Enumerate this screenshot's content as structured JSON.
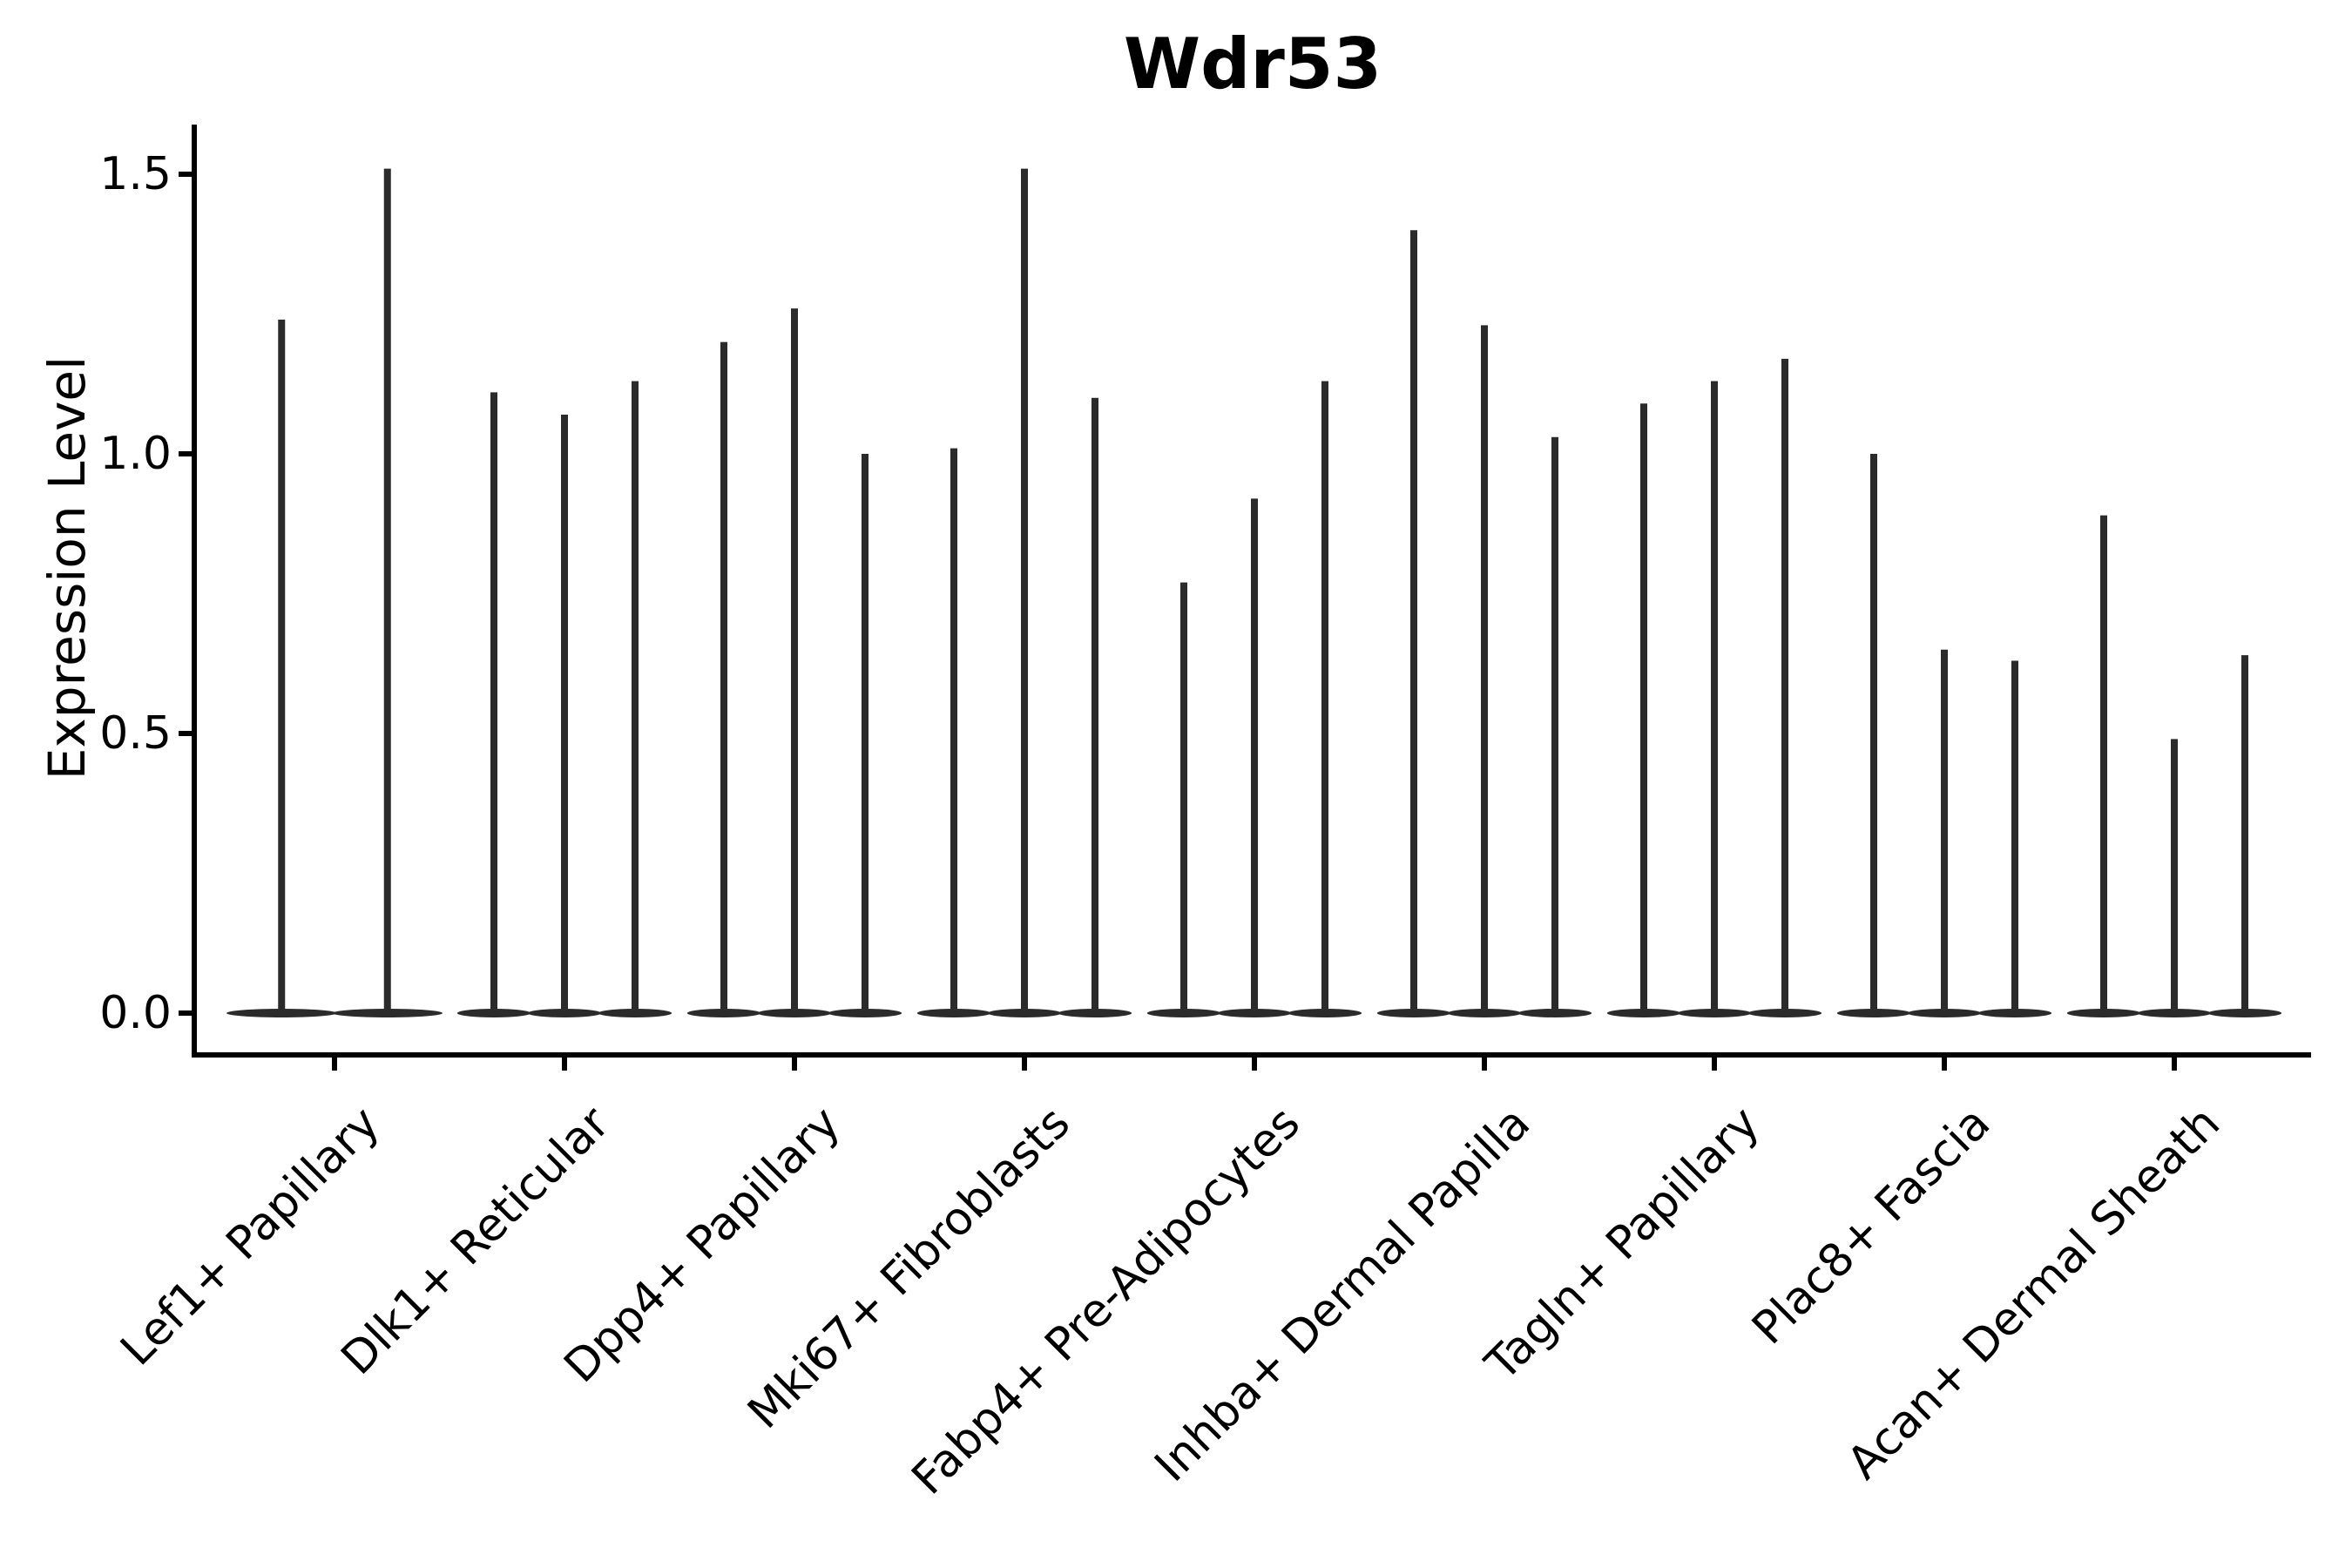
{
  "style": {
    "background": "#ffffff",
    "axis_color": "#000000",
    "violin_color": "#2b2b2b",
    "text_color": "#000000"
  },
  "chart_data": {
    "type": "violin",
    "title": "Wdr53",
    "xlabel": "",
    "ylabel": "Expression Level",
    "ylim": [
      -0.075,
      1.59
    ],
    "yticks": [
      0.0,
      0.5,
      1.0,
      1.5
    ],
    "ytick_labels": [
      "0.0",
      "0.5",
      "1.0",
      "1.5"
    ],
    "grid": false,
    "legend_position": "none",
    "x_tick_label_rotation_deg": 45,
    "categories": [
      "Lef1+ Papillary",
      "Dlk1+ Reticular",
      "Dpp4+ Papillary",
      "Mki67+ Fibroblasts",
      "Fabp4+ Pre-Adipocytes",
      "Inhba+ Dermal Papilla",
      "Tagln+ Papillary",
      "Plac8+ Fascia",
      "Acan+ Dermal Sheath"
    ],
    "description": "Spike-shaped violins: expression mass concentrated at 0 with a narrow spike reaching each violin's maximum expression value. Lef1+ Papillary has only two violins; all other categories have three.",
    "violins": [
      {
        "category": "Lef1+ Papillary",
        "maxima": [
          1.24,
          1.51
        ]
      },
      {
        "category": "Dlk1+ Reticular",
        "maxima": [
          1.11,
          1.07,
          1.13
        ]
      },
      {
        "category": "Dpp4+ Papillary",
        "maxima": [
          1.2,
          1.26,
          1.0
        ]
      },
      {
        "category": "Mki67+ Fibroblasts",
        "maxima": [
          1.01,
          1.51,
          1.1
        ]
      },
      {
        "category": "Fabp4+ Pre-Adipocytes",
        "maxima": [
          0.77,
          0.92,
          1.13
        ]
      },
      {
        "category": "Inhba+ Dermal Papilla",
        "maxima": [
          1.4,
          1.23,
          1.03
        ]
      },
      {
        "category": "Tagln+ Papillary",
        "maxima": [
          1.09,
          1.13,
          1.17
        ]
      },
      {
        "category": "Plac8+ Fascia",
        "maxima": [
          1.0,
          0.65,
          0.63
        ]
      },
      {
        "category": "Acan+ Dermal Sheath",
        "maxima": [
          0.89,
          0.49,
          0.64
        ]
      }
    ]
  }
}
